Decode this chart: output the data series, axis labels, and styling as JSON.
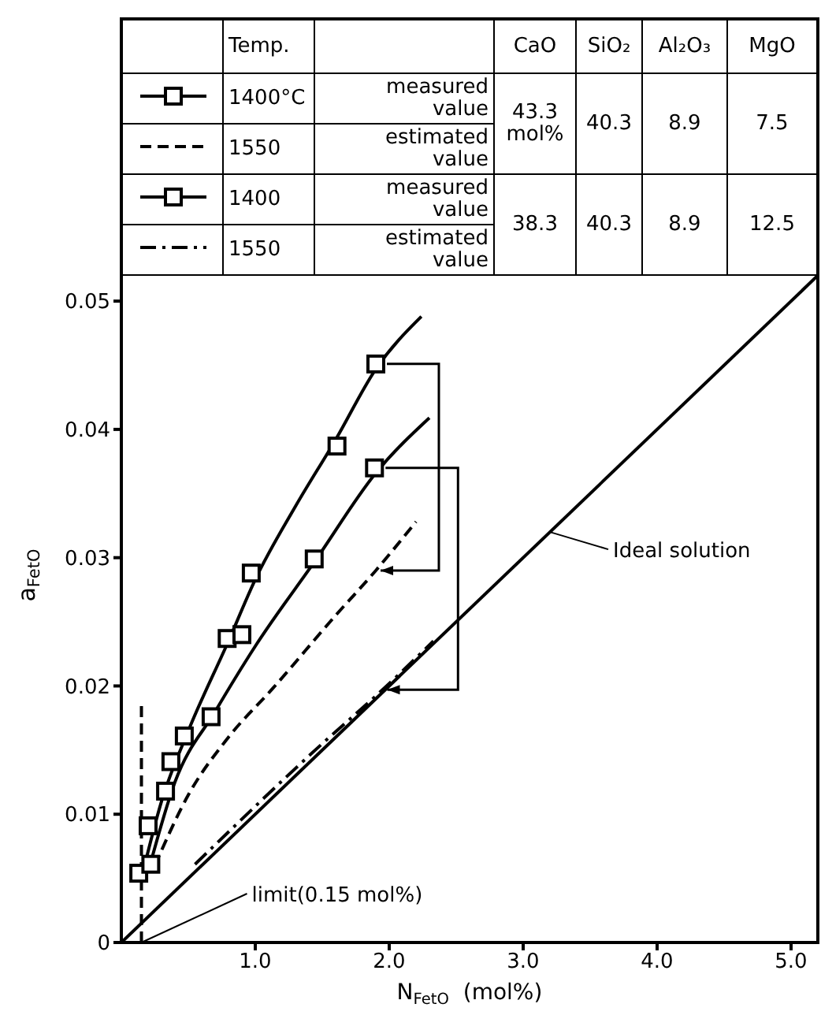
{
  "chart_data": {
    "type": "line",
    "xlabel": "N$_{FetO}$  (mol%)",
    "ylabel": "a$_{FetO}$",
    "xlim": [
      0,
      5.2
    ],
    "ylim": [
      0,
      0.072
    ],
    "xticks": [
      {
        "value": 1,
        "label": "1.0"
      },
      {
        "value": 2,
        "label": "2.0"
      },
      {
        "value": 3,
        "label": "3.0"
      },
      {
        "value": 4,
        "label": "4.0"
      },
      {
        "value": 5,
        "label": "5.0"
      }
    ],
    "yticks": [
      0,
      0.01,
      0.02,
      0.03,
      0.04,
      0.05
    ],
    "grid": false,
    "legend": "top",
    "series": [
      {
        "type": "scatter",
        "name": "1400°C",
        "color": "#000000",
        "marker": "square",
        "x": [
          0.13,
          0.2,
          0.37,
          0.47,
          0.79,
          0.9,
          0.97,
          1.61,
          1.9
        ],
        "values": [
          0.0054,
          0.0091,
          0.0141,
          0.0161,
          0.0237,
          0.024,
          0.0288,
          0.0387,
          0.0451
        ]
      },
      {
        "color": "#000000",
        "line_style": "solid",
        "x": [
          0.15,
          0.3,
          0.5,
          0.8,
          1.0,
          1.3,
          1.6,
          1.9,
          2.24
        ],
        "values": [
          0.005,
          0.011,
          0.0165,
          0.0235,
          0.0283,
          0.034,
          0.0392,
          0.0447,
          0.0488
        ]
      },
      {
        "name": "1550",
        "color": "#000000",
        "line_style": "dashed",
        "x": [
          0.25,
          0.5,
          0.8,
          1.13,
          1.6,
          1.9,
          2.2
        ],
        "values": [
          0.006,
          0.0115,
          0.016,
          0.0198,
          0.0255,
          0.029,
          0.0328
        ]
      },
      {
        "type": "scatter",
        "name": "1400",
        "color": "#000000",
        "marker": "square",
        "x": [
          0.22,
          0.33,
          0.67,
          1.44,
          1.89
        ],
        "values": [
          0.0061,
          0.0118,
          0.0176,
          0.0299,
          0.037
        ]
      },
      {
        "color": "#000000",
        "line_style": "solid",
        "x": [
          0.2,
          0.4,
          0.7,
          1.0,
          1.45,
          1.9,
          2.3
        ],
        "values": [
          0.0055,
          0.0125,
          0.018,
          0.0231,
          0.0298,
          0.0366,
          0.0409
        ]
      },
      {
        "name": "1550",
        "color": "#000000",
        "line_style": "dashdot",
        "x": [
          0.55,
          1.5,
          1.95,
          2.33
        ],
        "values": [
          0.0061,
          0.0155,
          0.0197,
          0.0235
        ]
      },
      {
        "color": "#000000",
        "line_style": "solid",
        "x": [
          0,
          5.2
        ],
        "values": [
          0,
          0.052
        ]
      },
      {
        "color": "#000000",
        "line_style": "dashed",
        "x": [
          0.15,
          0.15
        ],
        "values": [
          0,
          0.0185
        ]
      }
    ],
    "annotations": [
      "Temp.",
      "CaO",
      "SiO₂",
      "Al₂O₃",
      "MgO",
      "measured value",
      "estimated value",
      "measured value",
      "estimated value",
      "43.3 mol%",
      "40.3",
      "8.9",
      "7.5",
      "38.3",
      "40.3",
      "8.9",
      "12.5",
      {
        "text": "Ideal solution",
        "x": 3.2,
        "y": 0.032
      },
      {
        "text": "limit(0.15 mol%)",
        "x": 0.15,
        "y": 0
      }
    ]
  }
}
